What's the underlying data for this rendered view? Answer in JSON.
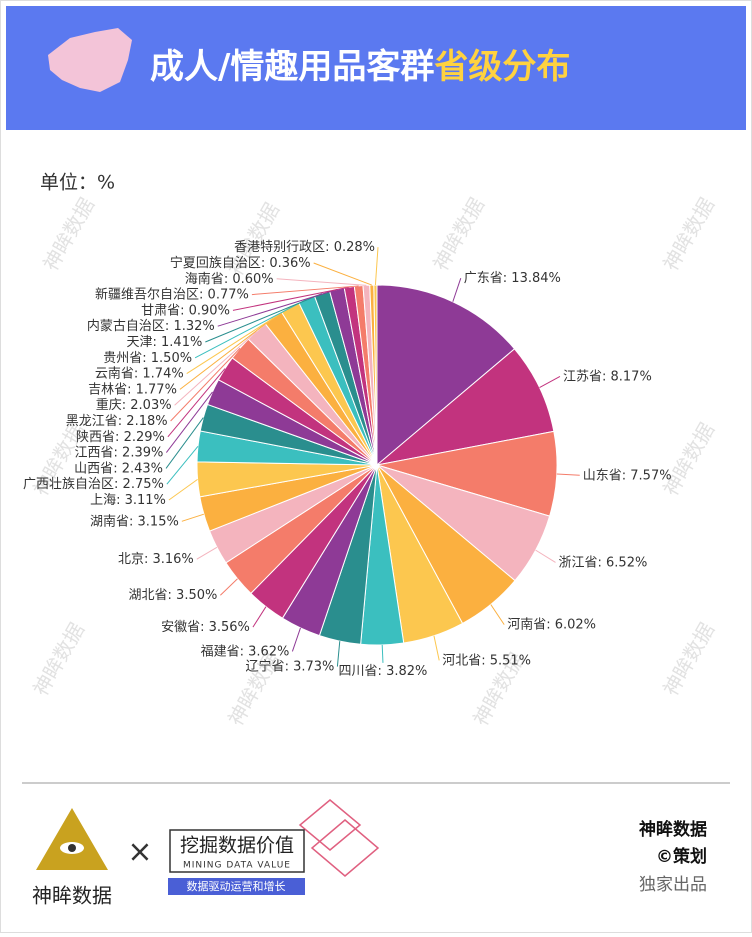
{
  "header": {
    "title_main": "成人/情趣用品客群",
    "title_highlight": "省级分布"
  },
  "chart_data": {
    "type": "pie",
    "unit_label": "单位：%",
    "categories": [
      "广东省",
      "江苏省",
      "山东省",
      "浙江省",
      "河南省",
      "河北省",
      "四川省",
      "辽宁省",
      "福建省",
      "安徽省",
      "湖北省",
      "北京",
      "湖南省",
      "上海",
      "广西壮族自治区",
      "山西省",
      "江西省",
      "陕西省",
      "黑龙江省",
      "重庆",
      "吉林省",
      "云南省",
      "贵州省",
      "天津",
      "内蒙古自治区",
      "甘肃省",
      "新疆维吾尔自治区",
      "海南省",
      "宁夏回族自治区",
      "香港特别行政区"
    ],
    "values": [
      13.84,
      8.17,
      7.57,
      6.52,
      6.02,
      5.51,
      3.82,
      3.73,
      3.62,
      3.56,
      3.5,
      3.16,
      3.15,
      3.11,
      2.75,
      2.43,
      2.39,
      2.29,
      2.18,
      2.03,
      1.77,
      1.74,
      1.5,
      1.41,
      1.32,
      0.9,
      0.77,
      0.6,
      0.36,
      0.28
    ],
    "value_labels": [
      "13.84%",
      "8.17%",
      "7.57%",
      "6.52%",
      "6.02%",
      "5.51%",
      "3.82%",
      "3.73%",
      "3.62%",
      "3.56%",
      "3.50%",
      "3.16%",
      "3.15%",
      "3.11%",
      "2.75%",
      "2.43%",
      "2.39%",
      "2.29%",
      "2.18%",
      "2.03%",
      "1.77%",
      "1.74%",
      "1.50%",
      "1.41%",
      "1.32%",
      "0.90%",
      "0.77%",
      "0.60%",
      "0.36%",
      "0.28%"
    ],
    "label_separator": ": ",
    "colors": [
      "#8e3a96",
      "#c2337e",
      "#f47c6a",
      "#f4b4be",
      "#fbb040",
      "#fcc74f",
      "#3bbfbf",
      "#2a8e8e"
    ]
  },
  "watermark": "神眸数据",
  "footer": {
    "logo_text": "神眸数据",
    "cross": "×",
    "slogan": "挖掘数据价值",
    "slogan_en": "MINING DATA VALUE",
    "tagline": "数据驱动运营和增长",
    "brand": "神眸数据",
    "credit": "©策划",
    "exclusive": "独家出品"
  }
}
